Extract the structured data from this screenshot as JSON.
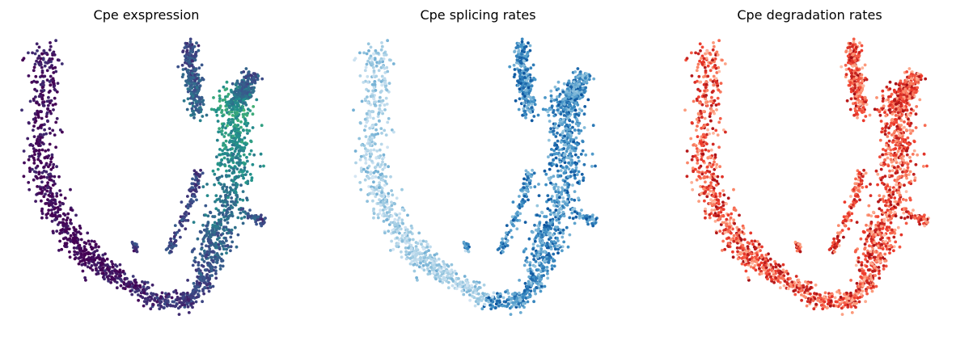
{
  "chart_data": [
    {
      "type": "scatter",
      "title": "Cpe exspression",
      "colormap": "viridis",
      "axes": "off",
      "grid": false,
      "colors": [
        "#440154",
        "#3b528b",
        "#21918c",
        "#5ec962"
      ]
    },
    {
      "type": "scatter",
      "title": "Cpe splicing rates",
      "colormap": "Blues",
      "axes": "off",
      "grid": false,
      "colors": [
        "#deebf7",
        "#9ecae1",
        "#4292c6",
        "#08519c"
      ]
    },
    {
      "type": "scatter",
      "title": "Cpe degradation rates",
      "colormap": "Reds",
      "axes": "off",
      "grid": false,
      "colors": [
        "#fee0d2",
        "#fc9272",
        "#ef3b2c",
        "#a50f15"
      ]
    }
  ]
}
